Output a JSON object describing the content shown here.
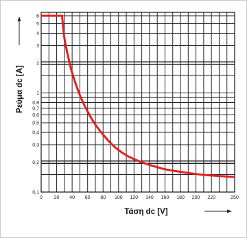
{
  "chart_data": {
    "type": "line",
    "title": "",
    "xlabel": "Τάση dc [V]",
    "ylabel": "Ρεύμα dc [A]",
    "x_scale": "linear",
    "y_scale": "log",
    "xlim": [
      0,
      250
    ],
    "ylim": [
      0.1,
      6.5
    ],
    "x_ticks": [
      "0",
      "20",
      "40",
      "60",
      "80",
      "100",
      "120",
      "140",
      "160",
      "180",
      "200",
      "220",
      "250"
    ],
    "y_ticks": [
      "0,1",
      "0,2",
      "0,3",
      "0,4",
      "0,5",
      "0,6",
      "0,7",
      "0,8",
      "1",
      "2",
      "3",
      "4",
      "5",
      "6"
    ],
    "grid": true,
    "series": [
      {
        "color": "#e02020",
        "x": [
          0,
          27,
          30,
          35,
          40,
          50,
          60,
          70,
          80,
          90,
          100,
          110,
          120,
          130,
          140,
          160,
          180,
          200,
          220,
          250
        ],
        "y": [
          6,
          6,
          3.6,
          2.3,
          1.6,
          0.95,
          0.65,
          0.48,
          0.38,
          0.31,
          0.265,
          0.235,
          0.215,
          0.2,
          0.188,
          0.17,
          0.16,
          0.152,
          0.147,
          0.142
        ]
      }
    ]
  }
}
